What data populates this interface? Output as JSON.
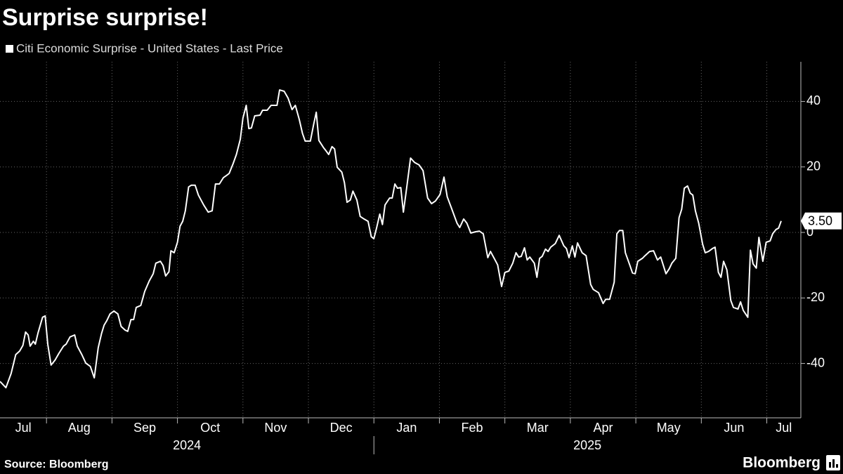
{
  "chart_data": {
    "type": "line",
    "title": "Surprise surprise!",
    "x": [
      0.29,
      0.38,
      0.46,
      0.53,
      0.59,
      0.64,
      0.68,
      0.72,
      0.75,
      0.8,
      0.83,
      0.87,
      0.94,
      0.98,
      1.02,
      1.07,
      1.13,
      1.19,
      1.26,
      1.3,
      1.36,
      1.43,
      1.47,
      1.54,
      1.6,
      1.67,
      1.73,
      1.79,
      1.84,
      1.88,
      1.92,
      1.97,
      2.03,
      2.09,
      2.14,
      2.2,
      2.24,
      2.29,
      2.33,
      2.37,
      2.44,
      2.5,
      2.57,
      2.63,
      2.67,
      2.74,
      2.78,
      2.82,
      2.87,
      2.9,
      2.95,
      3.0,
      3.04,
      3.08,
      3.12,
      3.17,
      3.21,
      3.27,
      3.32,
      3.4,
      3.47,
      3.53,
      3.58,
      3.64,
      3.7,
      3.75,
      3.79,
      3.85,
      3.9,
      3.96,
      4.0,
      4.05,
      4.09,
      4.13,
      4.18,
      4.26,
      4.3,
      4.37,
      4.43,
      4.52,
      4.56,
      4.63,
      4.69,
      4.75,
      4.8,
      4.86,
      4.91,
      4.95,
      5.03,
      5.08,
      5.12,
      5.16,
      5.23,
      5.27,
      5.31,
      5.36,
      5.4,
      5.44,
      5.51,
      5.55,
      5.59,
      5.64,
      5.68,
      5.74,
      5.79,
      5.85,
      5.91,
      5.96,
      6.0,
      6.04,
      6.09,
      6.13,
      6.17,
      6.24,
      6.28,
      6.32,
      6.36,
      6.41,
      6.45,
      6.49,
      6.56,
      6.62,
      6.69,
      6.75,
      6.82,
      6.88,
      6.94,
      7.01,
      7.07,
      7.12,
      7.18,
      7.27,
      7.31,
      7.37,
      7.42,
      7.48,
      7.55,
      7.61,
      7.67,
      7.74,
      7.78,
      7.85,
      7.89,
      7.95,
      8.0,
      8.06,
      8.12,
      8.17,
      8.21,
      8.25,
      8.3,
      8.34,
      8.38,
      8.45,
      8.49,
      8.53,
      8.57,
      8.62,
      8.66,
      8.7,
      8.77,
      8.83,
      8.9,
      8.94,
      8.98,
      9.03,
      9.07,
      9.11,
      9.18,
      9.24,
      9.31,
      9.35,
      9.43,
      9.5,
      9.54,
      9.6,
      9.67,
      9.71,
      9.75,
      9.8,
      9.84,
      9.91,
      9.95,
      9.99,
      10.03,
      10.1,
      10.14,
      10.21,
      10.27,
      10.33,
      10.38,
      10.42,
      10.46,
      10.51,
      10.55,
      10.61,
      10.66,
      10.7,
      10.74,
      10.79,
      10.83,
      10.87,
      10.91,
      10.96,
      11.02,
      11.06,
      11.11,
      11.17,
      11.21,
      11.26,
      11.3,
      11.34,
      11.39,
      11.45,
      11.49,
      11.56,
      11.6,
      11.64,
      11.71,
      11.75,
      11.79,
      11.84,
      11.88,
      11.94,
      11.99,
      12.05,
      12.09,
      12.14,
      12.18,
      12.22
    ],
    "series": [
      {
        "name": "Citi Economic Surprise - United States - Last Price",
        "color": "#ffffff",
        "values": [
          -45.5,
          -47.4,
          -43.1,
          -37.3,
          -36.2,
          -34.5,
          -30.4,
          -31.3,
          -34.7,
          -33.2,
          -34.1,
          -30.7,
          -25.9,
          -25.5,
          -34.1,
          -40.5,
          -39.0,
          -36.9,
          -34.7,
          -34.1,
          -31.9,
          -31.3,
          -34.7,
          -37.3,
          -39.9,
          -40.9,
          -44.4,
          -35.2,
          -30.9,
          -28.3,
          -27.0,
          -24.9,
          -24.0,
          -24.9,
          -28.7,
          -29.8,
          -30.2,
          -26.6,
          -26.6,
          -22.9,
          -22.3,
          -18.0,
          -14.8,
          -12.6,
          -9.4,
          -8.8,
          -10.1,
          -13.3,
          -12.0,
          -5.6,
          -6.2,
          -3.0,
          1.9,
          3.4,
          6.6,
          13.9,
          14.4,
          14.4,
          11.4,
          8.4,
          6.2,
          6.6,
          14.8,
          14.8,
          16.7,
          17.4,
          18.0,
          21.0,
          23.8,
          28.5,
          34.9,
          38.8,
          31.7,
          31.9,
          35.6,
          35.8,
          37.3,
          37.3,
          38.8,
          38.8,
          43.5,
          43.1,
          41.0,
          37.5,
          38.8,
          34.5,
          30.2,
          27.9,
          27.9,
          33.0,
          36.7,
          28.1,
          25.9,
          24.9,
          23.8,
          26.2,
          25.5,
          19.9,
          18.4,
          15.2,
          9.2,
          9.9,
          12.6,
          9.9,
          4.9,
          4.1,
          3.4,
          -1.3,
          -1.9,
          1.3,
          5.6,
          2.4,
          8.4,
          10.5,
          10.5,
          14.8,
          13.5,
          13.7,
          6.2,
          12.0,
          22.7,
          21.4,
          20.6,
          18.9,
          10.5,
          8.8,
          9.6,
          11.6,
          16.9,
          10.9,
          7.7,
          2.8,
          1.5,
          4.1,
          2.8,
          -0.2,
          0.2,
          0.4,
          -0.4,
          -7.7,
          -5.8,
          -8.4,
          -9.9,
          -16.5,
          -12.2,
          -11.8,
          -9.4,
          -6.2,
          -7.5,
          -7.3,
          -4.7,
          -8.4,
          -7.5,
          -9.4,
          -13.7,
          -7.9,
          -7.3,
          -5.1,
          -5.8,
          -4.5,
          -3.4,
          -0.9,
          -4.1,
          -4.9,
          -7.7,
          -4.1,
          -7.5,
          -3.2,
          -6.2,
          -7.1,
          -15.9,
          -17.4,
          -18.4,
          -21.7,
          -20.4,
          -20.4,
          -15.2,
          -0.4,
          0.6,
          0.6,
          -6.2,
          -10.1,
          -12.4,
          -12.6,
          -8.8,
          -7.9,
          -7.1,
          -5.8,
          -5.6,
          -8.4,
          -7.5,
          -10.1,
          -12.6,
          -11.1,
          -9.4,
          -7.9,
          4.5,
          7.1,
          13.5,
          14.2,
          12.0,
          11.4,
          6.6,
          2.8,
          -3.6,
          -6.2,
          -5.8,
          -4.9,
          -4.5,
          -12.2,
          -13.7,
          -8.8,
          -11.4,
          -20.8,
          -22.9,
          -23.4,
          -21.2,
          -23.8,
          -25.9,
          -5.4,
          -9.6,
          -10.9,
          -1.5,
          -8.8,
          -3.0,
          -2.6,
          -0.4,
          0.9,
          1.3,
          3.5
        ],
        "value_labels": [
          null,
          null,
          null,
          null,
          null,
          null,
          null,
          null,
          null,
          null,
          null,
          null,
          null,
          null,
          null,
          null,
          null,
          null,
          null,
          null,
          null,
          null,
          null,
          null,
          null,
          null,
          null,
          null,
          null,
          null,
          null,
          null,
          null,
          null,
          null,
          null,
          null,
          null,
          null,
          null,
          null,
          null,
          null,
          null,
          null,
          null,
          null,
          null,
          null,
          null,
          null,
          null,
          null,
          null,
          null,
          null,
          null,
          null,
          null,
          null,
          null,
          null,
          null,
          null,
          null,
          null,
          null,
          null,
          null,
          null,
          null,
          null,
          null,
          null,
          null,
          null,
          null,
          null,
          null,
          null,
          null,
          null,
          null,
          null,
          null,
          null,
          null,
          null,
          null,
          null,
          null,
          null,
          null,
          null,
          null,
          null,
          null,
          null,
          null,
          null,
          null,
          null,
          null,
          null,
          null,
          null,
          null,
          null,
          null,
          null,
          null,
          null,
          null,
          null,
          null,
          null,
          null,
          null,
          null,
          null,
          null,
          null,
          null,
          null,
          null,
          null,
          null,
          null,
          null,
          null,
          null,
          null,
          null,
          null,
          null,
          null,
          null,
          null,
          null,
          null,
          null,
          null,
          null,
          null,
          null,
          null,
          null,
          null,
          null,
          null,
          null,
          null,
          null,
          null,
          null,
          null,
          null,
          null,
          null,
          null,
          null,
          null,
          null,
          null,
          null,
          null,
          null,
          null,
          null,
          null,
          null,
          null,
          null,
          null,
          null,
          null,
          null,
          null,
          null,
          null,
          null,
          null,
          null,
          null,
          null,
          null,
          null,
          null,
          null,
          null,
          null,
          null,
          null,
          null,
          null,
          null,
          null,
          null,
          null,
          null,
          null,
          null,
          null,
          null,
          null,
          null,
          null,
          null,
          null,
          null,
          null,
          null,
          null,
          null,
          null,
          null,
          null,
          null,
          null,
          null,
          null,
          null,
          null,
          null,
          null,
          null,
          null,
          null,
          null,
          "3.50"
        ]
      }
    ],
    "xlim": [
      0.29,
      12.52
    ],
    "xticks": [
      {
        "value": 0,
        "label": "Jul"
      },
      {
        "value": 1,
        "label": "Aug"
      },
      {
        "value": 2,
        "label": "Sep"
      },
      {
        "value": 3,
        "label": "Oct"
      },
      {
        "value": 4,
        "label": "Nov"
      },
      {
        "value": 5,
        "label": "Dec"
      },
      {
        "value": 6,
        "label": "Jan"
      },
      {
        "value": 7,
        "label": "Feb"
      },
      {
        "value": 8,
        "label": "Mar"
      },
      {
        "value": 9,
        "label": "Apr"
      },
      {
        "value": 10,
        "label": "May"
      },
      {
        "value": 11,
        "label": "Jun"
      },
      {
        "value": 12,
        "label": "Jul"
      }
    ],
    "years": [
      "2024",
      "2025"
    ],
    "ylim": [
      -56.6,
      52.1
    ],
    "yticks": [
      -40,
      -20,
      0,
      20,
      40
    ],
    "grid": true
  },
  "footer": {
    "source": "Source: Bloomberg",
    "logo": "Bloomberg"
  }
}
